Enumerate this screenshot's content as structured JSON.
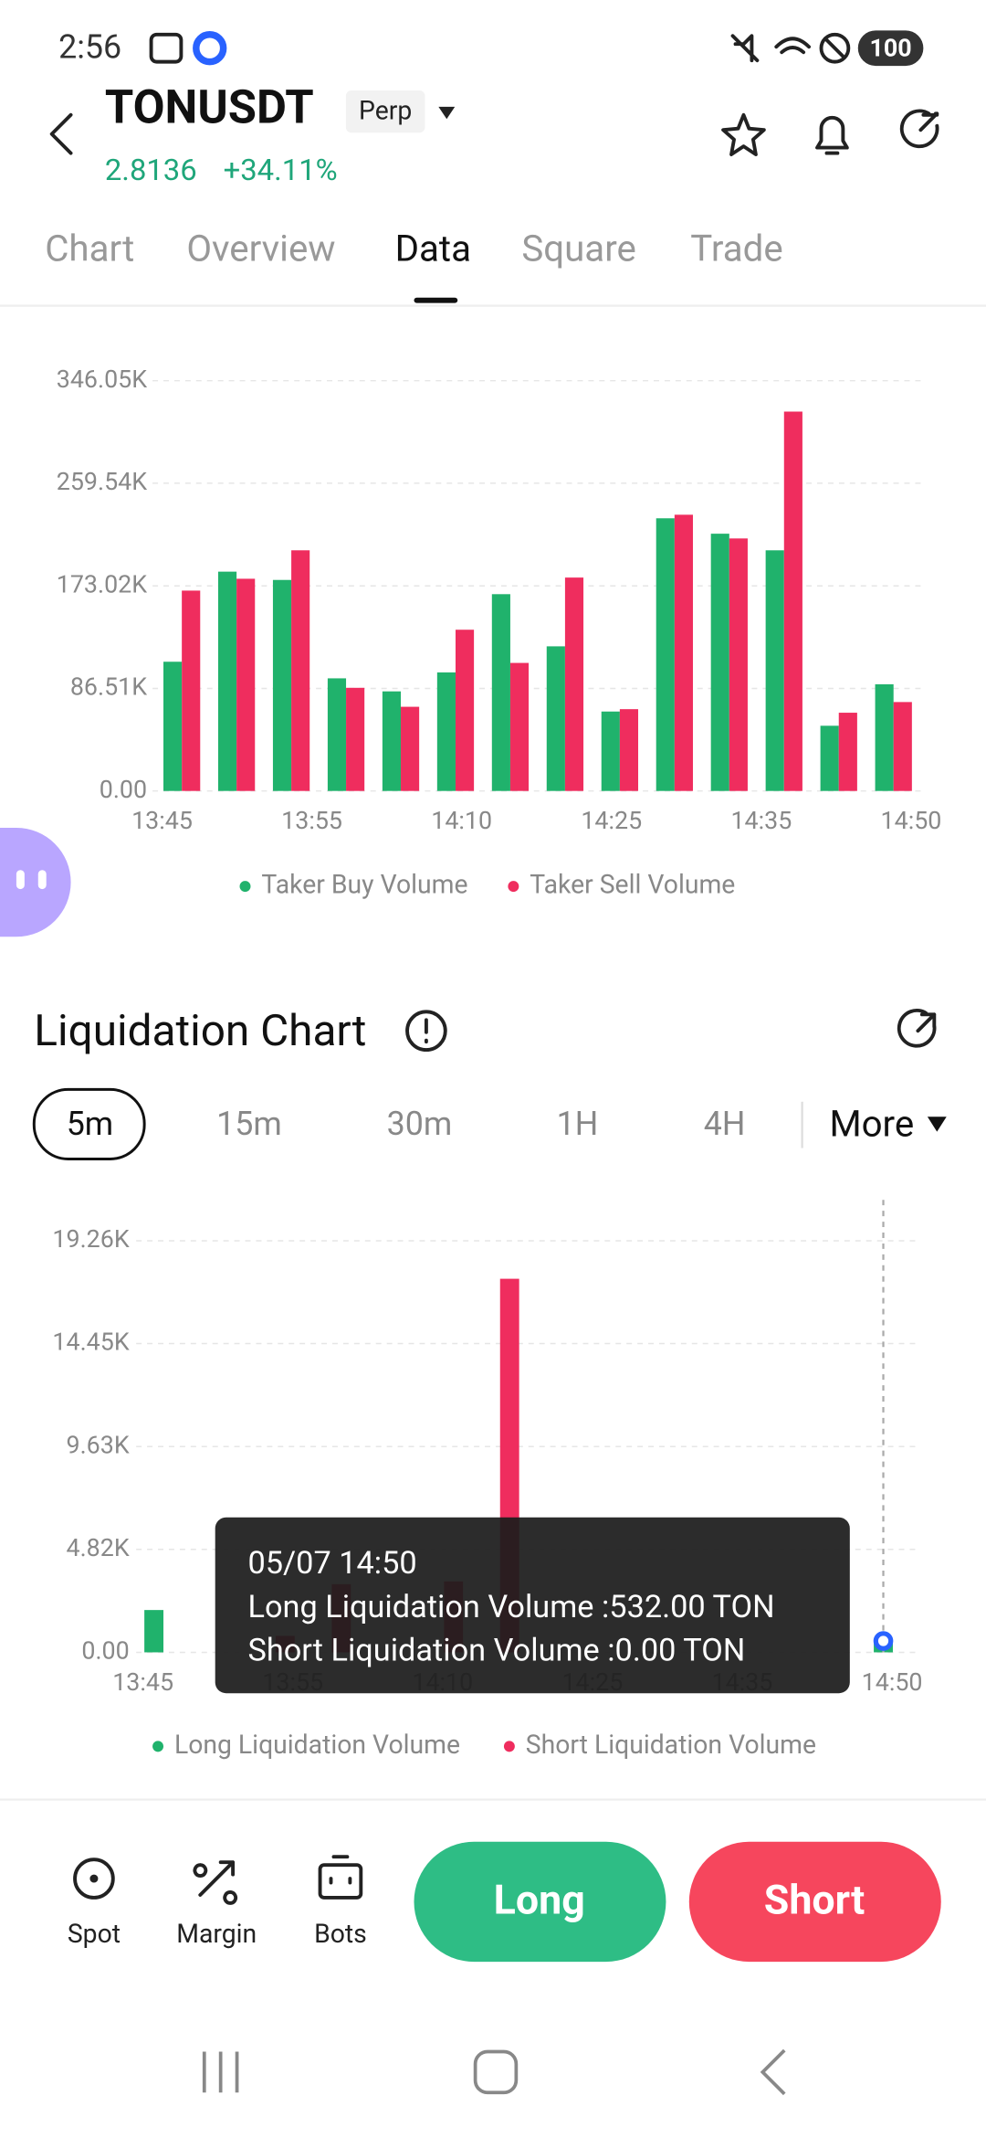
{
  "status_bar": {
    "time": "2:56",
    "battery": "100"
  },
  "header": {
    "symbol": "TONUSDT",
    "badge": "Perp",
    "price": "2.8136",
    "change": "+34.11%"
  },
  "tabs": [
    "Chart",
    "Overview",
    "Data",
    "Square",
    "Trade"
  ],
  "chart_data": [
    {
      "type": "bar",
      "ylim": [
        0,
        346050
      ],
      "yticks": [
        {
          "value": 0,
          "label": "0.00"
        },
        {
          "value": 86510,
          "label": "86.51K"
        },
        {
          "value": 173020,
          "label": "173.02K"
        },
        {
          "value": 259540,
          "label": "259.54K"
        },
        {
          "value": 346050,
          "label": "346.05K"
        }
      ],
      "x_tick_labels": [
        "13:45",
        "13:55",
        "14:10",
        "14:25",
        "14:35",
        "14:50"
      ],
      "grid": true,
      "series": [
        {
          "name": "Taker Buy Volume",
          "color": "#20b26c",
          "values": [
            109000,
            185000,
            178000,
            95000,
            84000,
            100000,
            166000,
            122000,
            67000,
            230000,
            217000,
            203000,
            55000,
            90000
          ]
        },
        {
          "name": "Taker Sell Volume",
          "color": "#ef2d5e",
          "values": [
            169000,
            179000,
            203000,
            87000,
            71000,
            136000,
            108000,
            180000,
            69000,
            233000,
            213000,
            320000,
            66000,
            75000
          ]
        }
      ]
    },
    {
      "type": "bar",
      "title": "Liquidation Chart",
      "intervals": [
        "5m",
        "15m",
        "30m",
        "1H",
        "4H"
      ],
      "more": "More",
      "ylim": [
        0,
        19260
      ],
      "yticks": [
        {
          "value": 0,
          "label": "0.00"
        },
        {
          "value": 4820,
          "label": "4.82K"
        },
        {
          "value": 9630,
          "label": "9.63K"
        },
        {
          "value": 14450,
          "label": "14.45K"
        },
        {
          "value": 19260,
          "label": "19.26K"
        }
      ],
      "x_tick_labels": [
        "13:45",
        "13:55",
        "14:10",
        "14:25",
        "14:35",
        "14:50"
      ],
      "grid": true,
      "series": [
        {
          "name": "Long Liquidation Volume",
          "color": "#20b26c",
          "values": [
            1980,
            0,
            0,
            0,
            0,
            0,
            0,
            0,
            0,
            0,
            0,
            0,
            0,
            532
          ]
        },
        {
          "name": "Short Liquidation Volume",
          "color": "#ef2d5e",
          "values": [
            0,
            0,
            770,
            3190,
            0,
            3320,
            17480,
            0,
            0,
            0,
            0,
            0,
            0,
            0
          ]
        }
      ],
      "tooltip": {
        "title": "05/07 14:50",
        "lines": [
          "Long Liquidation Volume :532.00 TON",
          "Short Liquidation Volume :0.00 TON"
        ]
      }
    }
  ],
  "bottom_bar": {
    "items": [
      "Spot",
      "Margin",
      "Bots"
    ],
    "long": "Long",
    "short": "Short"
  }
}
